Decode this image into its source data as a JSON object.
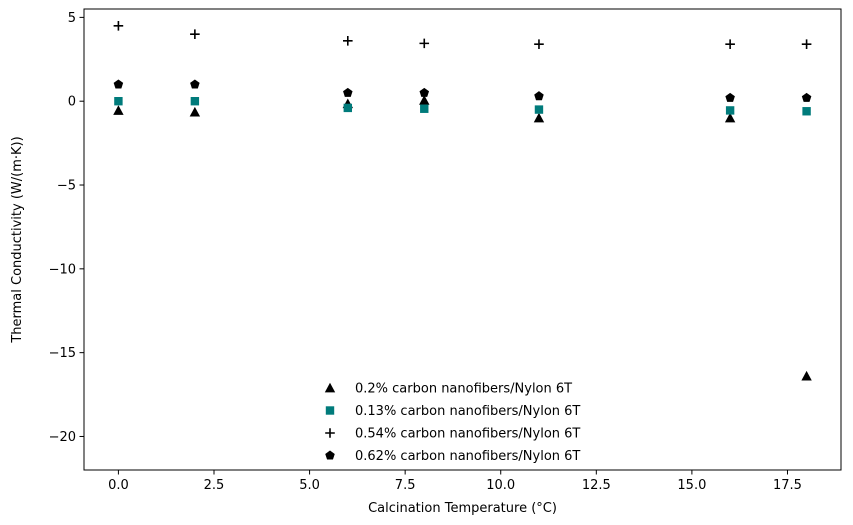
{
  "chart_data": {
    "type": "scatter",
    "title": "",
    "xlabel": "Calcination Temperature (°C)",
    "ylabel": "Thermal Conductivity (W/(m·K))",
    "xlim": [
      -0.9,
      18.9
    ],
    "ylim": [
      -22,
      5.5
    ],
    "xticks": [
      0,
      2.5,
      5,
      7.5,
      10,
      12.5,
      15,
      17.5
    ],
    "xtick_labels": [
      "0.0",
      "2.5",
      "5.0",
      "7.5",
      "10.0",
      "12.5",
      "15.0",
      "17.5"
    ],
    "yticks": [
      5,
      0,
      -5,
      -10,
      -15,
      -20
    ],
    "ytick_labels": [
      "5",
      "0",
      "−5",
      "−10",
      "−15",
      "−20"
    ],
    "grid": false,
    "legend_position": "lower-center",
    "series": [
      {
        "name": "0.2% carbon nanofibers/Nylon 6T",
        "marker": "triangle",
        "color": "#000000",
        "x": [
          0,
          2,
          6,
          8,
          11,
          16,
          18
        ],
        "y": [
          -0.55,
          -0.65,
          -0.15,
          0.05,
          -1.0,
          -1.0,
          -16.4
        ]
      },
      {
        "name": "0.13% carbon nanofibers/Nylon 6T",
        "marker": "square",
        "color": "#007b7b",
        "x": [
          0,
          2,
          6,
          8,
          11,
          16,
          18
        ],
        "y": [
          0.0,
          0.0,
          -0.4,
          -0.45,
          -0.5,
          -0.55,
          -0.6
        ]
      },
      {
        "name": "0.54% carbon nanofibers/Nylon 6T",
        "marker": "plus",
        "color": "#000000",
        "x": [
          0,
          2,
          6,
          8,
          11,
          16,
          18
        ],
        "y": [
          4.5,
          4.0,
          3.6,
          3.45,
          3.4,
          3.4,
          3.4
        ]
      },
      {
        "name": "0.62% carbon nanofibers/Nylon 6T",
        "marker": "pentagon",
        "color": "#000000",
        "x": [
          0,
          2,
          6,
          8,
          11,
          16,
          18
        ],
        "y": [
          1.0,
          1.0,
          0.5,
          0.5,
          0.3,
          0.2,
          0.2
        ]
      }
    ]
  }
}
